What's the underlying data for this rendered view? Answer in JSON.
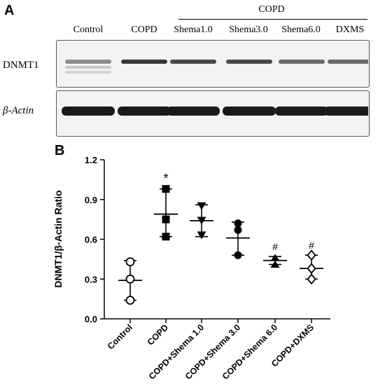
{
  "panel_a": {
    "letter": "A",
    "lanes": [
      "Control",
      "COPD",
      "Shema1.0",
      "Shema3.0",
      "Shema6.0",
      "DXMS"
    ],
    "group_label": "COPD",
    "rows": [
      "DNMT1",
      "β-Actin"
    ],
    "band_intensity": {
      "DNMT1": [
        0.35,
        0.85,
        0.75,
        0.75,
        0.55,
        0.55
      ],
      "β-Actin": [
        1,
        1,
        1,
        1,
        1,
        1
      ]
    }
  },
  "chart_data": {
    "type": "scatter",
    "panel_letter": "B",
    "title": "",
    "xlabel": "",
    "ylabel": "DNMT1/β-Actin Ratio",
    "ylim": [
      0.0,
      1.2
    ],
    "yticks": [
      "0.0",
      "0.3",
      "0.6",
      "0.9",
      "1.2"
    ],
    "categories": [
      "Control",
      "COPD",
      "COPD+Shema 1.0",
      "COPD+Shema 3.0",
      "COPD+Shema 6.0",
      "COPD+DXMS"
    ],
    "groups": [
      {
        "category": "Control",
        "marker": "open-circle",
        "points": [
          0.43,
          0.3,
          0.14
        ],
        "mean": 0.29,
        "error": [
          0.14,
          0.44
        ],
        "annotation": ""
      },
      {
        "category": "COPD",
        "marker": "filled-square",
        "points": [
          0.98,
          0.75,
          0.62
        ],
        "mean": 0.79,
        "error": [
          0.62,
          0.98
        ],
        "annotation": "*"
      },
      {
        "category": "COPD+Shema 1.0",
        "marker": "filled-triangle-down",
        "points": [
          0.85,
          0.74,
          0.63
        ],
        "mean": 0.74,
        "error": [
          0.62,
          0.86
        ],
        "annotation": ""
      },
      {
        "category": "COPD+Shema 3.0",
        "marker": "filled-circle",
        "points": [
          0.72,
          0.67,
          0.48
        ],
        "mean": 0.61,
        "error": [
          0.48,
          0.73
        ],
        "annotation": ""
      },
      {
        "category": "COPD+Shema 6.0",
        "marker": "filled-triangle-up",
        "points": [
          0.46,
          0.41,
          0.41
        ],
        "mean": 0.44,
        "error": [
          0.41,
          0.47
        ],
        "annotation": "#"
      },
      {
        "category": "COPD+DXMS",
        "marker": "open-diamond",
        "points": [
          0.48,
          0.38,
          0.3
        ],
        "mean": 0.38,
        "error": [
          0.3,
          0.48
        ],
        "annotation": "#"
      }
    ]
  }
}
